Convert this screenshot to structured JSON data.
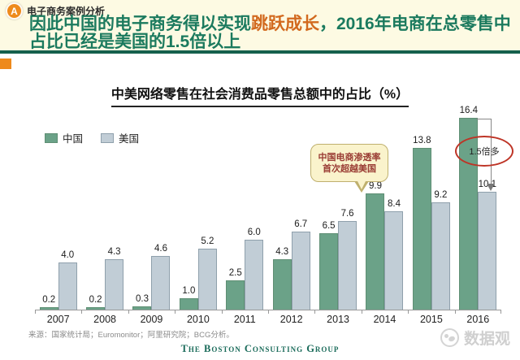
{
  "header": {
    "badge": "A",
    "kicker": "电子商务案例分析",
    "headline_part1": "因此中国的电子商务得以实现",
    "headline_highlight": "跳跃成长",
    "headline_part2": "，2016年电商在总零售中",
    "headline_line2": "占比已经是美国的1.5倍以上",
    "accent_green": "#1B7A5E",
    "accent_orange": "#D2691E"
  },
  "chart_data": {
    "type": "bar",
    "title": "中美网络零售在社会消费品零售总额中的占比（%）",
    "categories": [
      "2007",
      "2008",
      "2009",
      "2010",
      "2011",
      "2012",
      "2013",
      "2014",
      "2015",
      "2016"
    ],
    "series": [
      {
        "name": "中国",
        "color": "#6BA288",
        "values": [
          0.2,
          0.2,
          0.3,
          1.0,
          2.5,
          4.3,
          6.5,
          9.9,
          13.8,
          16.4
        ]
      },
      {
        "name": "美国",
        "color": "#C1CDD6",
        "values": [
          4.0,
          4.3,
          4.6,
          5.2,
          6.0,
          6.7,
          7.6,
          8.4,
          9.2,
          10.1
        ]
      }
    ],
    "ylim": [
      0,
      17.5
    ],
    "grid": false,
    "legend_position": "top-left",
    "value_labels": true,
    "annotation": {
      "line1": "中国电商渗透率",
      "line2": "首次超越美国",
      "target": "2014"
    },
    "ratio_callout": "1.5倍多"
  },
  "footer": {
    "source": "来源：国家统计局；Euromonitor；阿里研究院；BCG分析。",
    "logo": "The Boston Consulting Group",
    "watermark": "数据观"
  }
}
